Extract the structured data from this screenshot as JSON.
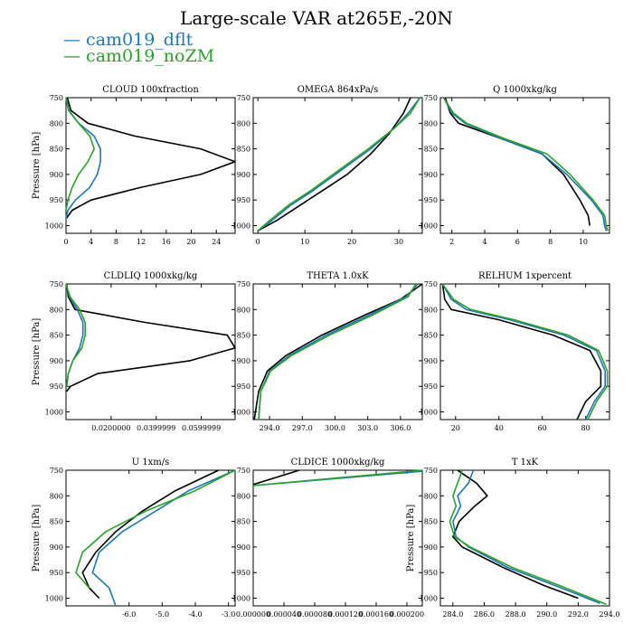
{
  "title": "Large-scale VAR at265E,-20N",
  "colors": {
    "black": "#000000",
    "cam019_dflt": "#1f77b4",
    "cam019_noZM": "#2ca02c"
  },
  "legend": [
    {
      "label": "cam019_dflt",
      "color": "#1f77b4"
    },
    {
      "label": "cam019_noZM",
      "color": "#2ca02c"
    }
  ],
  "chart_data": [
    {
      "type": "line",
      "title": "CLOUD  100xfraction",
      "ylabel": "Pressure [hPa]",
      "xlim": [
        0,
        27
      ],
      "ylim": [
        1015,
        750
      ],
      "xticks": [
        0,
        4,
        8,
        12,
        16,
        20,
        24
      ],
      "xtick_labels": [
        "0",
        "4",
        "8",
        "12",
        "16",
        "20",
        "24"
      ],
      "yticks": [
        750,
        800,
        850,
        900,
        950,
        1000
      ],
      "ytick_labels": [
        "750",
        "800",
        "850",
        "900",
        "950",
        "1000"
      ],
      "series": [
        {
          "color": "#000000",
          "x": [
            0.2,
            0.8,
            3.5,
            11.0,
            21.5,
            27.0,
            21.5,
            12.0,
            4.0,
            1.0,
            0.1
          ],
          "y": [
            750,
            775,
            800,
            825,
            850,
            875,
            900,
            925,
            950,
            970,
            985
          ]
        },
        {
          "color": "#1f77b4",
          "x": [
            0.0,
            0.4,
            2.0,
            4.5,
            5.5,
            5.5,
            5.0,
            3.8,
            1.5,
            0.3,
            0.0
          ],
          "y": [
            750,
            775,
            800,
            825,
            850,
            875,
            900,
            925,
            950,
            970,
            985
          ]
        },
        {
          "color": "#2ca02c",
          "x": [
            0.0,
            0.5,
            2.0,
            3.8,
            4.5,
            3.5,
            2.0,
            1.0,
            0.3,
            0.0
          ],
          "y": [
            750,
            775,
            800,
            825,
            850,
            875,
            900,
            925,
            950,
            970
          ]
        }
      ]
    },
    {
      "type": "line",
      "title": "OMEGA  864xPa/s",
      "ylabel": "",
      "xlim": [
        -1,
        35
      ],
      "ylim": [
        1015,
        750
      ],
      "xticks": [
        0,
        10,
        20,
        30
      ],
      "xtick_labels": [
        "0",
        "10",
        "20",
        "30"
      ],
      "yticks": [
        750,
        800,
        850,
        900,
        950,
        1000
      ],
      "ytick_labels": [
        "750",
        "800",
        "850",
        "900",
        "950",
        "1000"
      ],
      "series": [
        {
          "color": "#000000",
          "x": [
            0,
            4,
            9,
            14,
            19,
            24,
            28,
            31,
            32.5
          ],
          "y": [
            1010,
            990,
            960,
            930,
            900,
            860,
            820,
            780,
            750
          ]
        },
        {
          "color": "#1f77b4",
          "x": [
            0,
            3,
            7,
            12,
            18,
            24,
            29,
            32,
            34.5
          ],
          "y": [
            1010,
            990,
            960,
            930,
            890,
            850,
            810,
            780,
            750
          ]
        },
        {
          "color": "#2ca02c",
          "x": [
            0,
            2.5,
            6.5,
            11.5,
            17.5,
            23.5,
            29,
            32.5,
            34.5
          ],
          "y": [
            1010,
            990,
            960,
            930,
            890,
            850,
            810,
            780,
            750
          ]
        }
      ]
    },
    {
      "type": "line",
      "title": "Q  1000xkg/kg",
      "ylabel": "",
      "xlim": [
        1.3,
        11.6
      ],
      "ylim": [
        1015,
        750
      ],
      "xticks": [
        2,
        4,
        6,
        8,
        10
      ],
      "xtick_labels": [
        "2",
        "4",
        "6",
        "8",
        "10"
      ],
      "yticks": [
        750,
        800,
        850,
        900,
        950,
        1000
      ],
      "ytick_labels": [
        "750",
        "800",
        "850",
        "900",
        "950",
        "1000"
      ],
      "series": [
        {
          "color": "#000000",
          "x": [
            1.6,
            1.9,
            2.4,
            5.0,
            7.5,
            8.8,
            9.8,
            10.3,
            10.4
          ],
          "y": [
            750,
            780,
            800,
            830,
            860,
            900,
            950,
            980,
            1000
          ]
        },
        {
          "color": "#1f77b4",
          "x": [
            1.5,
            2.0,
            2.8,
            5.0,
            7.5,
            9.0,
            10.5,
            11.2,
            11.3,
            11.4
          ],
          "y": [
            750,
            780,
            800,
            830,
            860,
            900,
            950,
            980,
            1000,
            1010
          ]
        },
        {
          "color": "#2ca02c",
          "x": [
            1.5,
            2.1,
            2.9,
            5.2,
            7.8,
            9.2,
            10.6,
            11.3,
            11.4,
            11.5
          ],
          "y": [
            750,
            780,
            800,
            830,
            860,
            900,
            950,
            980,
            1000,
            1010
          ]
        }
      ]
    },
    {
      "type": "line",
      "title": "CLDLIQ  1000xkg/kg",
      "ylabel": "Pressure [hPa]",
      "xlim": [
        0,
        0.075
      ],
      "ylim": [
        1015,
        750
      ],
      "xticks": [
        0.02,
        0.04,
        0.06
      ],
      "xtick_labels": [
        "0.0200000",
        "0.0399999",
        "0.0599999"
      ],
      "yticks": [
        750,
        800,
        850,
        900,
        950,
        1000
      ],
      "ytick_labels": [
        "750",
        "800",
        "850",
        "900",
        "950",
        "1000"
      ],
      "series": [
        {
          "color": "#000000",
          "x": [
            0.0003,
            0.001,
            0.004,
            0.035,
            0.0715,
            0.075,
            0.055,
            0.014,
            0.002,
            0.0003
          ],
          "y": [
            750,
            775,
            800,
            825,
            850,
            875,
            900,
            925,
            950,
            960
          ]
        },
        {
          "color": "#1f77b4",
          "x": [
            0.0,
            0.0015,
            0.005,
            0.0075,
            0.0075,
            0.006,
            0.003,
            0.001,
            0.0003
          ],
          "y": [
            750,
            775,
            800,
            825,
            850,
            875,
            900,
            925,
            950
          ]
        },
        {
          "color": "#2ca02c",
          "x": [
            0.0,
            0.0018,
            0.006,
            0.0085,
            0.0085,
            0.007,
            0.003,
            0.001,
            0.0003
          ],
          "y": [
            750,
            775,
            800,
            825,
            850,
            875,
            900,
            925,
            950
          ]
        }
      ]
    },
    {
      "type": "line",
      "title": "THETA  1.0xK",
      "ylabel": "",
      "xlim": [
        292.5,
        308
      ],
      "ylim": [
        1015,
        750
      ],
      "xticks": [
        294,
        297,
        300,
        303,
        306
      ],
      "xtick_labels": [
        "294.0",
        "297.0",
        "300.0",
        "303.0",
        "306.0"
      ],
      "yticks": [
        750,
        800,
        850,
        900,
        950,
        1000
      ],
      "ytick_labels": [
        "750",
        "800",
        "850",
        "900",
        "950",
        "1000"
      ],
      "series": [
        {
          "color": "#000000",
          "x": [
            292.6,
            293.0,
            293.8,
            295.5,
            298.8,
            302.8,
            306.0,
            308.0
          ],
          "y": [
            1015,
            960,
            920,
            890,
            850,
            810,
            780,
            750
          ]
        },
        {
          "color": "#1f77b4",
          "x": [
            293.0,
            293.2,
            294.0,
            295.8,
            299.2,
            303.2,
            306.5,
            307.6
          ],
          "y": [
            1015,
            960,
            920,
            890,
            850,
            810,
            775,
            750
          ]
        },
        {
          "color": "#2ca02c",
          "x": [
            293.0,
            293.2,
            294.1,
            296.0,
            299.5,
            303.5,
            306.7,
            307.4
          ],
          "y": [
            1015,
            960,
            920,
            890,
            850,
            810,
            775,
            750
          ]
        }
      ]
    },
    {
      "type": "line",
      "title": "RELHUM  1xpercent",
      "ylabel": "",
      "xlim": [
        13,
        91
      ],
      "ylim": [
        1015,
        750
      ],
      "xticks": [
        20,
        40,
        60,
        80
      ],
      "xtick_labels": [
        "20",
        "40",
        "60",
        "80"
      ],
      "yticks": [
        750,
        800,
        850,
        900,
        950,
        1000
      ],
      "ytick_labels": [
        "750",
        "800",
        "850",
        "900",
        "950",
        "1000"
      ],
      "series": [
        {
          "color": "#000000",
          "x": [
            14,
            15,
            18,
            40,
            65,
            82,
            87,
            87,
            80,
            76
          ],
          "y": [
            750,
            780,
            800,
            820,
            850,
            880,
            920,
            950,
            980,
            1015
          ]
        },
        {
          "color": "#1f77b4",
          "x": [
            14,
            18,
            25,
            45,
            70,
            85,
            89,
            89,
            84,
            80
          ],
          "y": [
            750,
            780,
            800,
            820,
            850,
            880,
            920,
            950,
            980,
            1015
          ]
        },
        {
          "color": "#2ca02c",
          "x": [
            14,
            19,
            27,
            47,
            72,
            86,
            90,
            90,
            85,
            81
          ],
          "y": [
            750,
            780,
            800,
            820,
            850,
            880,
            920,
            950,
            980,
            1015
          ]
        }
      ]
    },
    {
      "type": "line",
      "title": "U  1xm/s",
      "ylabel": "Pressure [hPa]",
      "xlim": [
        -7.9,
        -2.8
      ],
      "ylim": [
        1015,
        750
      ],
      "xticks": [
        -6,
        -5,
        -4,
        -3
      ],
      "xtick_labels": [
        "-6.0",
        "-5.0",
        "-4.0",
        "-3.0"
      ],
      "yticks": [
        750,
        800,
        850,
        900,
        950,
        1000
      ],
      "ytick_labels": [
        "750",
        "800",
        "850",
        "900",
        "950",
        "1000"
      ],
      "series": [
        {
          "color": "#000000",
          "x": [
            -3.3,
            -4.6,
            -5.6,
            -6.4,
            -7.0,
            -7.4,
            -7.2,
            -6.9
          ],
          "y": [
            750,
            790,
            830,
            870,
            910,
            950,
            980,
            1000
          ]
        },
        {
          "color": "#1f77b4",
          "x": [
            -2.8,
            -4.2,
            -5.2,
            -6.2,
            -6.9,
            -7.1,
            -6.6,
            -6.4
          ],
          "y": [
            750,
            790,
            830,
            870,
            910,
            950,
            980,
            1015
          ]
        },
        {
          "color": "#2ca02c",
          "x": [
            -2.8,
            -4.0,
            -5.5,
            -6.7,
            -7.4,
            -7.6,
            -7.2
          ],
          "y": [
            750,
            790,
            830,
            870,
            910,
            950,
            980
          ]
        }
      ]
    },
    {
      "type": "line",
      "title": "CLDICE  1000xkg/kg",
      "ylabel": "",
      "xlim": [
        0,
        0.00022
      ],
      "ylim": [
        1015,
        750
      ],
      "xticks": [
        0,
        4e-05,
        8e-05,
        0.00012,
        0.00016,
        0.0002
      ],
      "xtick_labels": [
        "0.000000",
        "0.000040",
        "0.000080",
        "0.000120",
        "0.000160",
        "0.000200"
      ],
      "yticks": [
        750,
        800,
        850,
        900,
        950,
        1000
      ],
      "ytick_labels": [
        "750",
        "800",
        "850",
        "900",
        "950",
        "1000"
      ],
      "series": [
        {
          "color": "#000000",
          "x": [
            6e-05,
            0.0
          ],
          "y": [
            750,
            778
          ]
        },
        {
          "color": "#1f77b4",
          "x": [
            0.00022,
            0.0
          ],
          "y": [
            752,
            780
          ]
        },
        {
          "color": "#2ca02c",
          "x": [
            0.00022,
            0.0
          ],
          "y": [
            750,
            780
          ]
        }
      ]
    },
    {
      "type": "line",
      "title": "T  1xK",
      "ylabel": "Pressure [hPa]",
      "xlim": [
        283.2,
        294.0
      ],
      "ylim": [
        1015,
        750
      ],
      "xticks": [
        284,
        286,
        288,
        290,
        292,
        294
      ],
      "xtick_labels": [
        "284.0",
        "286.0",
        "288.0",
        "290.0",
        "292.0",
        "294.0"
      ],
      "yticks": [
        750,
        800,
        850,
        900,
        950,
        1000
      ],
      "ytick_labels": [
        "750",
        "800",
        "850",
        "900",
        "950",
        "1000"
      ],
      "series": [
        {
          "color": "#000000",
          "x": [
            284.3,
            285.5,
            286.2,
            285.4,
            284.4,
            284.0,
            284.6,
            287.2,
            289.8,
            292.0
          ],
          "y": [
            750,
            775,
            800,
            820,
            850,
            880,
            900,
            940,
            975,
            1000
          ]
        },
        {
          "color": "#1f77b4",
          "x": [
            285.3,
            285.0,
            284.3,
            284.5,
            284.0,
            284.2,
            285.0,
            287.5,
            290.5,
            293.4
          ],
          "y": [
            750,
            775,
            800,
            820,
            850,
            880,
            900,
            940,
            975,
            1010
          ]
        },
        {
          "color": "#2ca02c",
          "x": [
            284.6,
            284.3,
            284.0,
            284.2,
            283.8,
            284.1,
            285.1,
            287.8,
            290.8,
            293.8
          ],
          "y": [
            750,
            775,
            800,
            820,
            850,
            880,
            900,
            940,
            975,
            1012
          ]
        }
      ]
    }
  ]
}
